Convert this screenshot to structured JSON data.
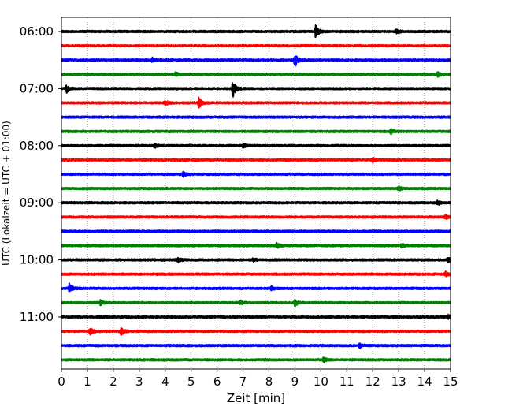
{
  "chart_data": {
    "type": "line",
    "title": "",
    "xlabel": "Zeit  [min]",
    "ylabel": "UTC (Lokalzeit = UTC + 01:00)",
    "xlim": [
      0,
      15
    ],
    "x_ticks": [
      "0",
      "1",
      "2",
      "3",
      "4",
      "5",
      "6",
      "7",
      "8",
      "9",
      "10",
      "11",
      "12",
      "13",
      "14",
      "15"
    ],
    "y_ticks": [
      "06:00",
      "07:00",
      "08:00",
      "09:00",
      "10:00",
      "11:00"
    ],
    "grid": "vertical dotted at each minute",
    "trace_interval_min": 15,
    "colors_cycle": [
      "#000000",
      "#ff0000",
      "#0000ff",
      "#008000"
    ],
    "traces": [
      {
        "start": "06:00",
        "color": "#000000",
        "events": [
          {
            "t": 9.8,
            "amp": 1.0
          },
          {
            "t": 12.9,
            "amp": 0.25
          }
        ]
      },
      {
        "start": "06:15",
        "color": "#ff0000",
        "events": []
      },
      {
        "start": "06:30",
        "color": "#0000ff",
        "events": [
          {
            "t": 9.0,
            "amp": 1.0
          },
          {
            "t": 3.5,
            "amp": 0.3
          }
        ]
      },
      {
        "start": "06:45",
        "color": "#008000",
        "events": [
          {
            "t": 4.4,
            "amp": 0.3
          },
          {
            "t": 14.5,
            "amp": 0.3
          }
        ]
      },
      {
        "start": "07:00",
        "color": "#000000",
        "events": [
          {
            "t": 0.2,
            "amp": 0.5
          },
          {
            "t": 6.6,
            "amp": 1.4
          }
        ]
      },
      {
        "start": "07:15",
        "color": "#ff0000",
        "events": [
          {
            "t": 4.0,
            "amp": 0.35
          },
          {
            "t": 5.3,
            "amp": 0.8
          }
        ]
      },
      {
        "start": "07:30",
        "color": "#0000ff",
        "events": []
      },
      {
        "start": "07:45",
        "color": "#008000",
        "events": [
          {
            "t": 12.7,
            "amp": 0.35
          }
        ]
      },
      {
        "start": "08:00",
        "color": "#000000",
        "events": [
          {
            "t": 3.6,
            "amp": 0.3
          },
          {
            "t": 7.0,
            "amp": 0.25
          }
        ]
      },
      {
        "start": "08:15",
        "color": "#ff0000",
        "events": [
          {
            "t": 12.0,
            "amp": 0.3
          }
        ]
      },
      {
        "start": "08:30",
        "color": "#0000ff",
        "events": [
          {
            "t": 4.7,
            "amp": 0.3
          }
        ]
      },
      {
        "start": "08:45",
        "color": "#008000",
        "events": [
          {
            "t": 13.0,
            "amp": 0.3
          }
        ]
      },
      {
        "start": "09:00",
        "color": "#000000",
        "events": [
          {
            "t": 14.5,
            "amp": 0.3
          }
        ]
      },
      {
        "start": "09:15",
        "color": "#ff0000",
        "events": [
          {
            "t": 14.8,
            "amp": 0.3
          }
        ]
      },
      {
        "start": "09:30",
        "color": "#0000ff",
        "events": []
      },
      {
        "start": "09:45",
        "color": "#008000",
        "events": [
          {
            "t": 8.3,
            "amp": 0.35
          },
          {
            "t": 13.1,
            "amp": 0.3
          }
        ]
      },
      {
        "start": "10:00",
        "color": "#000000",
        "events": [
          {
            "t": 4.5,
            "amp": 0.3
          },
          {
            "t": 7.4,
            "amp": 0.25
          },
          {
            "t": 14.9,
            "amp": 0.3
          }
        ]
      },
      {
        "start": "10:15",
        "color": "#ff0000",
        "events": [
          {
            "t": 14.8,
            "amp": 0.35
          }
        ]
      },
      {
        "start": "10:30",
        "color": "#0000ff",
        "events": [
          {
            "t": 0.3,
            "amp": 0.7
          },
          {
            "t": 8.1,
            "amp": 0.3
          }
        ]
      },
      {
        "start": "10:45",
        "color": "#008000",
        "events": [
          {
            "t": 1.5,
            "amp": 0.35
          },
          {
            "t": 6.9,
            "amp": 0.25
          },
          {
            "t": 9.0,
            "amp": 0.5
          }
        ]
      },
      {
        "start": "11:00",
        "color": "#000000",
        "events": [
          {
            "t": 14.9,
            "amp": 0.35
          }
        ]
      },
      {
        "start": "11:15",
        "color": "#ff0000",
        "events": [
          {
            "t": 1.1,
            "amp": 0.5
          },
          {
            "t": 2.3,
            "amp": 0.55
          }
        ]
      },
      {
        "start": "11:30",
        "color": "#0000ff",
        "events": [
          {
            "t": 11.5,
            "amp": 0.35
          }
        ]
      },
      {
        "start": "11:45",
        "color": "#008000",
        "events": [
          {
            "t": 10.1,
            "amp": 0.35
          }
        ]
      }
    ]
  }
}
